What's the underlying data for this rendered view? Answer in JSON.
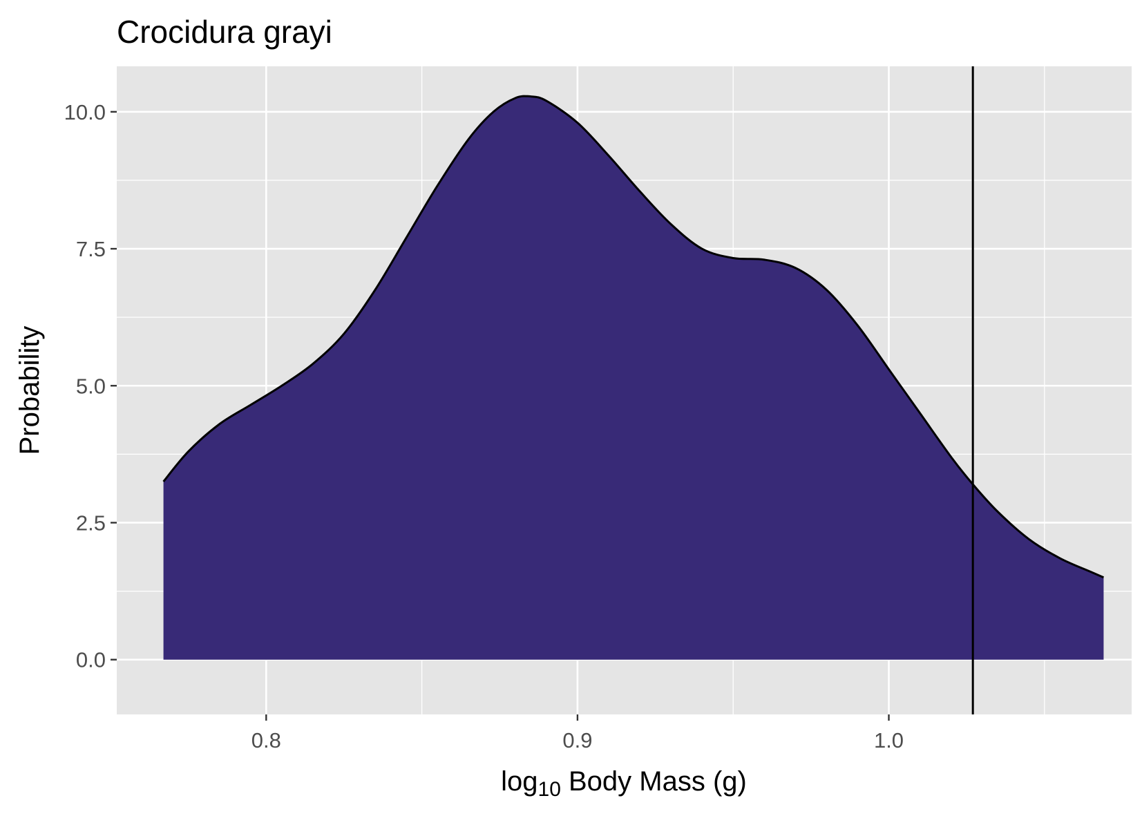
{
  "chart_data": {
    "type": "area",
    "title": "Crocidura grayi",
    "xlabel": {
      "prefix": "log",
      "subscript": "10",
      "suffix": " Body Mass (g)"
    },
    "ylabel": "Probability",
    "xlim": [
      0.752,
      1.078
    ],
    "ylim": [
      -1.0,
      10.83
    ],
    "x_ticks": [
      {
        "value": 0.8,
        "label": "0.8"
      },
      {
        "value": 0.9,
        "label": "0.9"
      },
      {
        "value": 1.0,
        "label": "1.0"
      }
    ],
    "y_ticks": [
      {
        "value": 0.0,
        "label": "0.0"
      },
      {
        "value": 2.5,
        "label": "2.5"
      },
      {
        "value": 5.0,
        "label": "5.0"
      },
      {
        "value": 7.5,
        "label": "7.5"
      },
      {
        "value": 10.0,
        "label": "10.0"
      }
    ],
    "x_minor_ticks": [
      0.75,
      0.85,
      0.95,
      1.05
    ],
    "y_minor_ticks": [
      1.25,
      3.75,
      6.25,
      8.75
    ],
    "grid": true,
    "legend": "none",
    "series": [
      {
        "x": [
          0.767,
          0.775,
          0.785,
          0.795,
          0.805,
          0.815,
          0.825,
          0.835,
          0.845,
          0.855,
          0.865,
          0.873,
          0.88,
          0.885,
          0.89,
          0.9,
          0.91,
          0.92,
          0.93,
          0.94,
          0.95,
          0.96,
          0.97,
          0.98,
          0.99,
          1.0,
          1.01,
          1.02,
          1.027,
          1.035,
          1.045,
          1.055,
          1.065,
          1.069
        ],
        "y": [
          3.25,
          3.8,
          4.3,
          4.65,
          5.0,
          5.4,
          5.95,
          6.75,
          7.7,
          8.65,
          9.5,
          10.0,
          10.25,
          10.28,
          10.2,
          9.8,
          9.2,
          8.55,
          7.95,
          7.5,
          7.33,
          7.3,
          7.15,
          6.75,
          6.1,
          5.3,
          4.5,
          3.7,
          3.2,
          2.7,
          2.2,
          1.85,
          1.6,
          1.5
        ]
      }
    ],
    "reference_line": {
      "x": 1.027
    },
    "colors": {
      "fill": "#382a77",
      "outline": "#000000",
      "panel": "#e5e5e5",
      "grid": "#ffffff",
      "tick_text": "#4d4d4d"
    }
  }
}
